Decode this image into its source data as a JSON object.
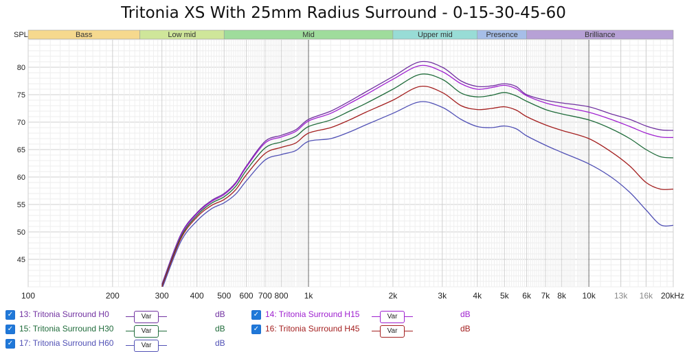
{
  "title": "Tritonia XS With 25mm Radius Surround - 0-15-30-45-60",
  "chart_data": {
    "type": "line",
    "ylabel": "SPL",
    "x_scale": "log",
    "xlim": [
      100,
      20000
    ],
    "ylim": [
      40,
      85
    ],
    "y_ticks": [
      45,
      50,
      55,
      60,
      65,
      70,
      75,
      80
    ],
    "x_ticks": [
      {
        "v": 100,
        "label": "100"
      },
      {
        "v": 200,
        "label": "200"
      },
      {
        "v": 300,
        "label": "300"
      },
      {
        "v": 400,
        "label": "400"
      },
      {
        "v": 500,
        "label": "500"
      },
      {
        "v": 600,
        "label": "600"
      },
      {
        "v": 700,
        "label": "700"
      },
      {
        "v": 800,
        "label": "800"
      },
      {
        "v": 1000,
        "label": "1k"
      },
      {
        "v": 2000,
        "label": "2k"
      },
      {
        "v": 3000,
        "label": "3k"
      },
      {
        "v": 4000,
        "label": "4k"
      },
      {
        "v": 5000,
        "label": "5k"
      },
      {
        "v": 6000,
        "label": "6k"
      },
      {
        "v": 7000,
        "label": "7k"
      },
      {
        "v": 8000,
        "label": "8k"
      },
      {
        "v": 10000,
        "label": "10k"
      },
      {
        "v": 13000,
        "label": "13k"
      },
      {
        "v": 16000,
        "label": "16k"
      },
      {
        "v": 20000,
        "label": "20kHz"
      }
    ],
    "bands": [
      {
        "name": "Bass",
        "from": 100,
        "to": 250,
        "color": "#f6d98e"
      },
      {
        "name": "Low mid",
        "from": 250,
        "to": 500,
        "color": "#cfe69a"
      },
      {
        "name": "Mid",
        "from": 500,
        "to": 2000,
        "color": "#9fdc9c"
      },
      {
        "name": "Upper mid",
        "from": 2000,
        "to": 4000,
        "color": "#98dcd6"
      },
      {
        "name": "Presence",
        "from": 4000,
        "to": 6000,
        "color": "#a6bee8"
      },
      {
        "name": "Brilliance",
        "from": 6000,
        "to": 20000,
        "color": "#b7a1d6"
      }
    ],
    "x": [
      300,
      350,
      400,
      450,
      500,
      550,
      600,
      700,
      800,
      900,
      1000,
      1200,
      1400,
      1600,
      2000,
      2500,
      3000,
      3500,
      4000,
      4500,
      5000,
      5500,
      6000,
      7000,
      8000,
      10000,
      12000,
      14000,
      16000,
      18000,
      20000
    ],
    "series": [
      {
        "name": "13: Tritonia Surround H0",
        "color": "#7030a0",
        "values": [
          40.5,
          49.5,
          53.5,
          55.7,
          57.0,
          59.0,
          62.0,
          66.5,
          67.6,
          68.6,
          70.5,
          72.0,
          73.8,
          75.5,
          78.3,
          81.0,
          80.0,
          77.5,
          76.5,
          76.6,
          77.0,
          76.5,
          75.0,
          74.0,
          73.5,
          72.8,
          71.5,
          70.5,
          69.3,
          68.6,
          68.5
        ]
      },
      {
        "name": "14: Tritonia Surround H15",
        "color": "#9e1fcf",
        "values": [
          40.4,
          49.3,
          53.3,
          55.5,
          56.8,
          58.8,
          61.8,
          66.2,
          67.3,
          68.3,
          70.2,
          71.6,
          73.4,
          75.0,
          77.8,
          80.3,
          79.2,
          77.0,
          76.0,
          76.3,
          76.7,
          76.1,
          74.8,
          73.5,
          72.8,
          71.8,
          70.5,
          69.2,
          68.0,
          67.3,
          67.2
        ]
      },
      {
        "name": "15: Tritonia Surround H30",
        "color": "#1f6b3a",
        "values": [
          40.2,
          49.0,
          53.0,
          55.2,
          56.4,
          58.3,
          61.2,
          65.3,
          66.4,
          67.4,
          69.2,
          70.4,
          72.0,
          73.4,
          76.0,
          78.7,
          77.8,
          75.3,
          74.6,
          74.9,
          75.4,
          74.8,
          73.8,
          72.3,
          71.5,
          70.4,
          68.8,
          67.0,
          65.0,
          63.7,
          63.5
        ]
      },
      {
        "name": "16: Tritonia Surround H45",
        "color": "#a31e1e",
        "values": [
          40.0,
          48.7,
          52.7,
          54.8,
          55.9,
          57.7,
          60.4,
          64.3,
          65.4,
          66.2,
          68.0,
          69.0,
          70.4,
          71.8,
          74.0,
          76.5,
          75.4,
          73.0,
          72.3,
          72.5,
          72.8,
          72.2,
          71.0,
          69.5,
          68.5,
          67.0,
          64.6,
          62.0,
          59.0,
          57.8,
          57.8
        ]
      },
      {
        "name": "17: Tritonia Surround H60",
        "color": "#5050b5",
        "values": [
          39.6,
          48.2,
          52.0,
          54.2,
          55.3,
          56.9,
          59.3,
          63.1,
          64.1,
          64.8,
          66.5,
          67.0,
          68.2,
          69.5,
          71.6,
          73.7,
          72.7,
          70.5,
          69.2,
          69.0,
          69.3,
          68.8,
          67.5,
          65.8,
          64.5,
          62.4,
          60.0,
          57.2,
          54.0,
          51.3,
          51.2
        ]
      }
    ]
  },
  "legend": {
    "var_label": "Var",
    "unit_label": "dB",
    "items": [
      {
        "name": "13: Tritonia Surround H0",
        "color": "#7030a0"
      },
      {
        "name": "14: Tritonia Surround H15",
        "color": "#9e1fcf"
      },
      {
        "name": "15: Tritonia Surround H30",
        "color": "#1f6b3a"
      },
      {
        "name": "16: Tritonia Surround H45",
        "color": "#a31e1e"
      },
      {
        "name": "17: Tritonia Surround H60",
        "color": "#5050b5"
      }
    ]
  }
}
